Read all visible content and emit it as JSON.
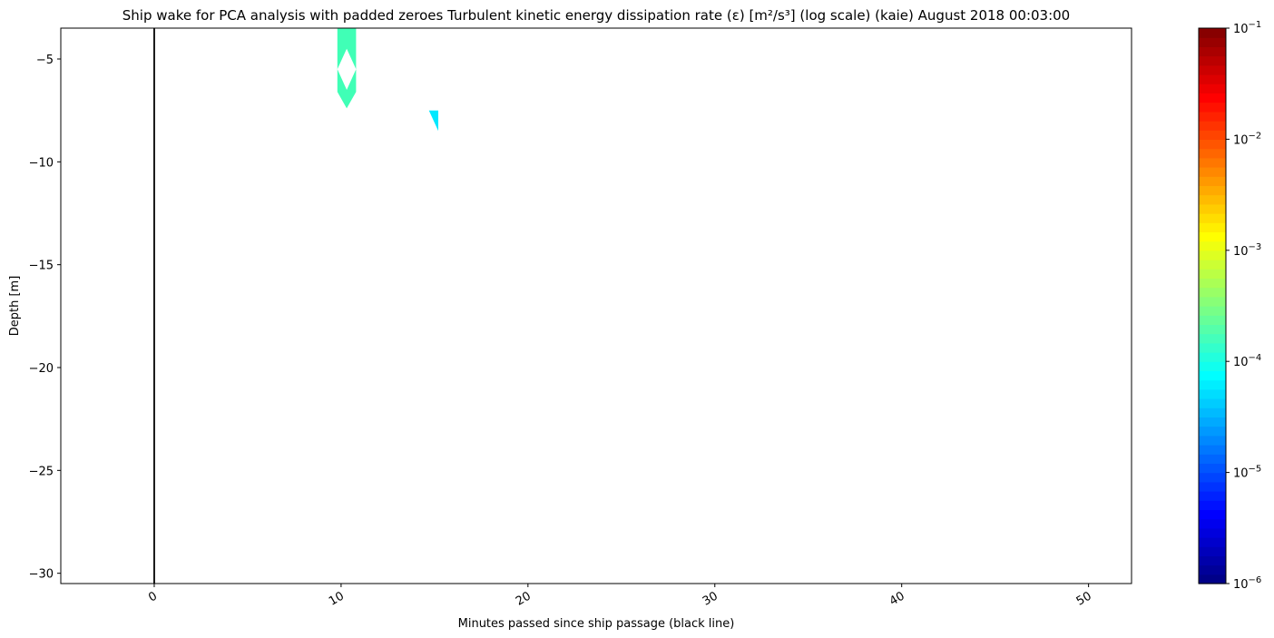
{
  "chart_data": {
    "type": "heatmap",
    "title": "Ship wake for PCA analysis with padded zeroes Turbulent kinetic energy dissipation rate (ε) [m²/s³] (log scale) (kaie) August 2018 00:03:00",
    "xlabel": "Minutes passed since ship passage (black line)",
    "ylabel": "Depth [m]",
    "xlim": [
      -5,
      52.3
    ],
    "ylim": [
      -30.5,
      -3.5
    ],
    "xticks": [
      0,
      10,
      20,
      30,
      40,
      50
    ],
    "xtick_labels": [
      "0",
      "10",
      "20",
      "30",
      "40",
      "50"
    ],
    "yticks": [
      -5,
      -10,
      -15,
      -20,
      -25,
      -30
    ],
    "ytick_labels": [
      "−5",
      "−10",
      "−15",
      "−20",
      "−25",
      "−30"
    ],
    "ship_passage_marker_x": 0,
    "regions": [
      {
        "name": "wake-patch-upper",
        "colormap_log10_value": -3.8,
        "color": "#40ffb6",
        "polygon": [
          [
            10.0,
            -3.5
          ],
          [
            10.8,
            -3.5
          ],
          [
            10.8,
            -6.6
          ],
          [
            10.3,
            -7.4
          ],
          [
            9.8,
            -6.6
          ],
          [
            9.8,
            -3.5
          ]
        ],
        "holes": [
          [
            [
              10.3,
              -4.5
            ],
            [
              10.8,
              -5.5
            ],
            [
              10.3,
              -6.5
            ],
            [
              9.8,
              -5.5
            ]
          ]
        ]
      },
      {
        "name": "wake-patch-lower",
        "colormap_log10_value": -4.0,
        "color": "#00e8ff",
        "polygon": [
          [
            14.7,
            -7.5
          ],
          [
            15.2,
            -7.5
          ],
          [
            15.2,
            -8.5
          ]
        ]
      }
    ],
    "colorbar": {
      "scale": "log",
      "min": 1e-06,
      "max": 0.1,
      "colormap": "jet",
      "ticks": [
        {
          "exp": -6,
          "base": "10",
          "sup": "−6"
        },
        {
          "exp": -5,
          "base": "10",
          "sup": "−5"
        },
        {
          "exp": -4,
          "base": "10",
          "sup": "−4"
        },
        {
          "exp": -3,
          "base": "10",
          "sup": "−3"
        },
        {
          "exp": -2,
          "base": "10",
          "sup": "−2"
        },
        {
          "exp": -1,
          "base": "10",
          "sup": "−1"
        }
      ]
    }
  }
}
